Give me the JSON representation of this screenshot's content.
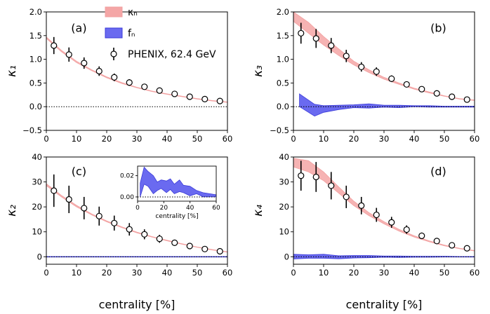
{
  "colors": {
    "kappa_band": "#f4a6a6",
    "kappa_line": "#f2a0a0",
    "f_band": "#6a6af0",
    "f_line": "#3a3ad8",
    "zero_line": "#000000",
    "marker_fill": "#ffffff",
    "marker_edge": "#000000"
  },
  "legend": {
    "kappa_label": "κₙ",
    "f_label": "fₙ",
    "data_label": "PHENIX, 62.4 GeV"
  },
  "chart_data": [
    {
      "type": "line",
      "panel": "(a)",
      "ylabel": "κ₁",
      "xlabel": "",
      "xlim": [
        0,
        60
      ],
      "ylim": [
        -0.5,
        2.0
      ],
      "xticks": [
        "0",
        "10",
        "20",
        "30",
        "40",
        "50",
        "60"
      ],
      "yticks": [
        "−0.5",
        "0.0",
        "0.5",
        "1.0",
        "1.5",
        "2.0"
      ],
      "ytick_values": [
        -0.5,
        0.0,
        0.5,
        1.0,
        1.5,
        2.0
      ],
      "kappa_band": {
        "x": [
          0,
          5,
          10,
          15,
          20,
          25,
          30,
          35,
          40,
          45,
          50,
          55,
          60
        ],
        "low": [
          1.44,
          1.16,
          0.93,
          0.76,
          0.61,
          0.49,
          0.4,
          0.32,
          0.26,
          0.21,
          0.16,
          0.12,
          0.09
        ],
        "high": [
          1.47,
          1.19,
          0.96,
          0.78,
          0.63,
          0.51,
          0.41,
          0.33,
          0.27,
          0.22,
          0.17,
          0.13,
          0.1
        ]
      },
      "f_band": null,
      "points": {
        "x": [
          2.5,
          7.5,
          12.5,
          17.5,
          22.5,
          27.5,
          32.5,
          37.5,
          42.5,
          47.5,
          52.5,
          57.5
        ],
        "y": [
          1.29,
          1.1,
          0.92,
          0.75,
          0.62,
          0.51,
          0.42,
          0.34,
          0.27,
          0.21,
          0.16,
          0.12
        ],
        "err": [
          0.18,
          0.15,
          0.12,
          0.1,
          0.08,
          0.07,
          0.05,
          0.04,
          0.03,
          0.03,
          0.02,
          0.02
        ]
      }
    },
    {
      "type": "line",
      "panel": "(b)",
      "ylabel": "κ₃",
      "xlabel": "",
      "xlim": [
        0,
        60
      ],
      "ylim": [
        -0.5,
        2.0
      ],
      "xticks": [
        "0",
        "10",
        "20",
        "30",
        "40",
        "50",
        "60"
      ],
      "yticks": [
        "−0.5",
        "0.0",
        "0.5",
        "1.0",
        "1.5",
        "2.0"
      ],
      "ytick_values": [
        -0.5,
        0.0,
        0.5,
        1.0,
        1.5,
        2.0
      ],
      "kappa_band": {
        "x": [
          0,
          5,
          10,
          15,
          20,
          25,
          30,
          35,
          40,
          45,
          50,
          55,
          60
        ],
        "low": [
          1.8,
          1.55,
          1.3,
          1.08,
          0.88,
          0.72,
          0.58,
          0.47,
          0.37,
          0.29,
          0.22,
          0.16,
          0.13
        ],
        "high": [
          2.0,
          1.78,
          1.48,
          1.22,
          0.96,
          0.78,
          0.62,
          0.5,
          0.39,
          0.31,
          0.23,
          0.17,
          0.14
        ]
      },
      "f_band": {
        "x": [
          2,
          7,
          10,
          15,
          20,
          25,
          30,
          35,
          40,
          45,
          50,
          55,
          60
        ],
        "low": [
          0.0,
          -0.2,
          -0.12,
          -0.06,
          -0.02,
          -0.03,
          -0.01,
          -0.02,
          0.0,
          -0.01,
          -0.01,
          -0.01,
          -0.01
        ],
        "high": [
          0.27,
          0.05,
          0.02,
          0.03,
          0.04,
          0.06,
          0.03,
          0.03,
          0.02,
          0.02,
          0.01,
          0.01,
          0.01
        ]
      },
      "points": {
        "x": [
          2.5,
          7.5,
          12.5,
          17.5,
          22.5,
          27.5,
          32.5,
          37.5,
          42.5,
          47.5,
          52.5,
          57.5
        ],
        "y": [
          1.55,
          1.44,
          1.29,
          1.07,
          0.84,
          0.74,
          0.59,
          0.47,
          0.37,
          0.28,
          0.21,
          0.15
        ],
        "err": [
          0.22,
          0.2,
          0.16,
          0.13,
          0.1,
          0.09,
          0.07,
          0.05,
          0.04,
          0.03,
          0.03,
          0.03
        ]
      }
    },
    {
      "type": "line",
      "panel": "(c)",
      "ylabel": "κ₂",
      "xlabel": "centrality [%]",
      "xlim": [
        0,
        60
      ],
      "ylim": [
        -3,
        40
      ],
      "xticks": [
        "0",
        "10",
        "20",
        "30",
        "40",
        "50",
        "60"
      ],
      "yticks": [
        "0",
        "10",
        "20",
        "30",
        "40"
      ],
      "ytick_values": [
        0,
        10,
        20,
        30,
        40
      ],
      "kappa_band": {
        "x": [
          0,
          5,
          10,
          15,
          20,
          25,
          30,
          35,
          40,
          45,
          50,
          55,
          60
        ],
        "low": [
          28.5,
          24.0,
          20.0,
          16.8,
          14.0,
          11.7,
          9.6,
          7.9,
          6.4,
          5.0,
          3.8,
          2.7,
          1.8
        ],
        "high": [
          29.3,
          24.6,
          20.6,
          17.2,
          14.4,
          12.0,
          9.9,
          8.1,
          6.6,
          5.2,
          3.9,
          2.9,
          2.0
        ]
      },
      "f_band": {
        "x": [
          0,
          60
        ],
        "low": [
          -0.1,
          -0.1
        ],
        "high": [
          0.1,
          0.1
        ]
      },
      "points": {
        "x": [
          2.5,
          7.5,
          12.5,
          17.5,
          22.5,
          27.5,
          32.5,
          37.5,
          42.5,
          47.5,
          52.5,
          57.5
        ],
        "y": [
          26.5,
          23.0,
          19.5,
          16.3,
          13.5,
          11.0,
          9.0,
          7.2,
          5.6,
          4.3,
          3.1,
          2.2
        ],
        "err": [
          6.5,
          5.5,
          4.5,
          3.8,
          3.0,
          2.5,
          2.0,
          1.6,
          1.2,
          0.9,
          0.6,
          0.5
        ]
      },
      "inset": {
        "xlabel": "centrality [%]",
        "xlim": [
          0,
          60
        ],
        "ylim": [
          -0.004,
          0.029
        ],
        "xticks": [
          "0",
          "20",
          "40",
          "60"
        ],
        "yticks": [
          "0.00",
          "0.02"
        ],
        "ytick_values": [
          0.0,
          0.02
        ],
        "f_band": {
          "x": [
            2,
            5,
            8,
            12,
            15,
            18,
            22,
            25,
            28,
            32,
            35,
            40,
            45,
            50,
            55,
            60
          ],
          "low": [
            0.0,
            0.012,
            0.01,
            0.003,
            0.006,
            0.008,
            0.004,
            0.007,
            0.003,
            0.005,
            0.004,
            0.001,
            0.003,
            0.0,
            0.0,
            0.0
          ],
          "high": [
            0.013,
            0.028,
            0.024,
            0.02,
            0.014,
            0.016,
            0.015,
            0.017,
            0.012,
            0.016,
            0.011,
            0.01,
            0.006,
            0.004,
            0.003,
            0.002
          ]
        }
      }
    },
    {
      "type": "line",
      "panel": "(d)",
      "ylabel": "κ₄",
      "xlabel": "centrality [%]",
      "xlim": [
        0,
        60
      ],
      "ylim": [
        -3,
        40
      ],
      "xticks": [
        "0",
        "10",
        "20",
        "30",
        "40",
        "50",
        "60"
      ],
      "yticks": [
        "0",
        "10",
        "20",
        "30",
        "40"
      ],
      "ytick_values": [
        0,
        10,
        20,
        30,
        40
      ],
      "kappa_band": {
        "x": [
          0,
          5,
          10,
          15,
          20,
          25,
          30,
          35,
          40,
          45,
          50,
          55,
          60
        ],
        "low": [
          36.0,
          34.0,
          30.5,
          25.5,
          20.5,
          16.5,
          13.2,
          10.3,
          7.9,
          6.0,
          4.4,
          3.2,
          2.3
        ],
        "high": [
          39.5,
          38.5,
          34.0,
          28.0,
          22.3,
          17.7,
          14.1,
          11.0,
          8.4,
          6.4,
          4.7,
          3.4,
          2.5
        ]
      },
      "f_band": {
        "x": [
          0,
          5,
          10,
          15,
          20,
          25,
          30,
          35,
          40,
          45,
          50,
          55,
          60
        ],
        "low": [
          -0.9,
          -0.6,
          -0.6,
          -0.8,
          -0.5,
          -0.4,
          -0.2,
          -0.3,
          -0.2,
          -0.2,
          -0.1,
          -0.1,
          -0.1
        ],
        "high": [
          1.0,
          0.8,
          1.0,
          0.4,
          0.5,
          0.5,
          0.3,
          0.3,
          0.2,
          0.2,
          0.2,
          0.1,
          0.1
        ]
      },
      "points": {
        "x": [
          2.5,
          7.5,
          12.5,
          17.5,
          22.5,
          27.5,
          32.5,
          37.5,
          42.5,
          47.5,
          52.5,
          57.5
        ],
        "y": [
          32.5,
          32.0,
          28.5,
          24.0,
          20.5,
          16.8,
          13.8,
          10.9,
          8.4,
          6.3,
          4.6,
          3.4
        ],
        "err": [
          6.0,
          6.0,
          5.5,
          4.5,
          3.5,
          2.8,
          2.2,
          1.7,
          1.3,
          1.0,
          0.7,
          0.5
        ]
      }
    }
  ]
}
